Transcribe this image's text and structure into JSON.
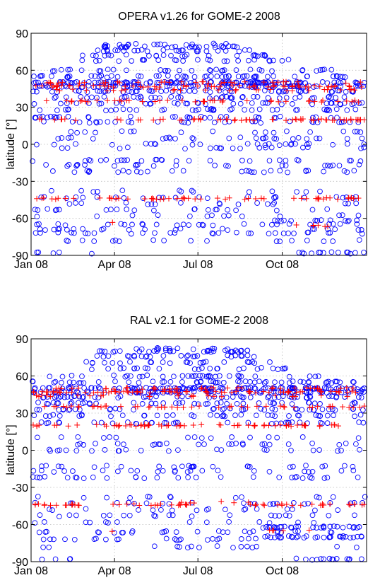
{
  "chart_data": [
    {
      "type": "scatter",
      "title": "OPERA v1.26 for GOME-2 2008",
      "xlabel": "",
      "ylabel": "latitude [°]",
      "xlim": [
        "2008-01-01",
        "2009-01-01"
      ],
      "ylim": [
        -90,
        90
      ],
      "xticks": [
        {
          "date": "2008-01-01",
          "label": "Jan 08"
        },
        {
          "date": "2008-04-01",
          "label": "Apr 08"
        },
        {
          "date": "2008-07-01",
          "label": "Jul 08"
        },
        {
          "date": "2008-10-01",
          "label": "Oct 08"
        }
      ],
      "yticks": [
        -90,
        -60,
        -30,
        0,
        30,
        60,
        90
      ],
      "grid": true,
      "series": [
        {
          "marker": "circle",
          "color": "#0000ff",
          "bands": [
            {
              "lat": 50,
              "from": "2008-01-01",
              "to": "2008-12-31",
              "count": 110
            },
            {
              "lat": 47,
              "from": "2008-01-01",
              "to": "2008-12-31",
              "count": 80
            },
            {
              "lat": 43,
              "from": "2008-01-01",
              "to": "2008-12-31",
              "count": 55
            },
            {
              "lat": 38,
              "from": "2008-01-01",
              "to": "2008-12-31",
              "count": 45
            },
            {
              "lat": 33,
              "from": "2008-01-01",
              "to": "2008-12-31",
              "count": 40
            },
            {
              "lat": 28,
              "from": "2008-01-01",
              "to": "2008-12-31",
              "count": 40
            },
            {
              "lat": 22,
              "from": "2008-01-01",
              "to": "2008-12-31",
              "count": 35
            },
            {
              "lat": 18,
              "from": "2008-01-01",
              "to": "2008-12-31",
              "count": 30
            },
            {
              "lat": 60,
              "from": "2008-01-20",
              "to": "2008-11-25",
              "count": 35
            },
            {
              "lat": 55,
              "from": "2008-01-01",
              "to": "2008-12-31",
              "count": 55
            },
            {
              "lat": 68,
              "from": "2008-02-25",
              "to": "2008-10-15",
              "count": 25
            },
            {
              "lat": 72,
              "from": "2008-02-20",
              "to": "2008-09-20",
              "count": 25
            },
            {
              "lat": 76,
              "from": "2008-03-10",
              "to": "2008-09-05",
              "count": 25
            },
            {
              "lat": 79,
              "from": "2008-03-15",
              "to": "2008-08-25",
              "count": 30
            },
            {
              "lat": 81,
              "from": "2008-03-20",
              "to": "2008-08-10",
              "count": 14
            },
            {
              "lat": 10,
              "from": "2008-01-01",
              "to": "2008-12-31",
              "count": 18
            },
            {
              "lat": 5,
              "from": "2008-01-01",
              "to": "2008-12-31",
              "count": 28
            },
            {
              "lat": 0,
              "from": "2008-01-01",
              "to": "2008-12-31",
              "count": 24
            },
            {
              "lat": -3,
              "from": "2008-01-01",
              "to": "2008-12-31",
              "count": 18
            },
            {
              "lat": -13,
              "from": "2008-01-01",
              "to": "2008-12-31",
              "count": 28
            },
            {
              "lat": -17,
              "from": "2008-01-01",
              "to": "2008-12-31",
              "count": 24
            },
            {
              "lat": -22,
              "from": "2008-01-01",
              "to": "2008-12-31",
              "count": 30
            },
            {
              "lat": -38,
              "from": "2008-01-01",
              "to": "2008-12-31",
              "count": 14
            },
            {
              "lat": -43,
              "from": "2008-01-01",
              "to": "2008-12-31",
              "count": 24
            },
            {
              "lat": -48,
              "from": "2008-01-01",
              "to": "2008-12-31",
              "count": 18
            },
            {
              "lat": -53,
              "from": "2008-01-01",
              "to": "2008-12-31",
              "count": 22
            },
            {
              "lat": -58,
              "from": "2008-01-01",
              "to": "2008-12-31",
              "count": 14
            },
            {
              "lat": -62,
              "from": "2008-09-10",
              "to": "2008-12-31",
              "count": 14
            },
            {
              "lat": -65,
              "from": "2008-01-01",
              "to": "2008-12-31",
              "count": 28
            },
            {
              "lat": -69,
              "from": "2008-01-01",
              "to": "2008-12-31",
              "count": 22
            },
            {
              "lat": -72,
              "from": "2008-01-01",
              "to": "2008-12-31",
              "count": 30
            },
            {
              "lat": -78,
              "from": "2008-01-01",
              "to": "2008-12-31",
              "count": 18
            },
            {
              "lat": -88,
              "from": "2008-01-01",
              "to": "2008-03-10",
              "count": 5
            },
            {
              "lat": -88,
              "from": "2008-10-10",
              "to": "2008-12-31",
              "count": 14
            }
          ]
        },
        {
          "marker": "plus",
          "color": "#ff0000",
          "bands": [
            {
              "lat": 50,
              "from": "2008-01-01",
              "to": "2008-12-31",
              "count": 35
            },
            {
              "lat": 47,
              "from": "2008-01-01",
              "to": "2008-12-31",
              "count": 60
            },
            {
              "lat": 44,
              "from": "2008-01-01",
              "to": "2008-12-31",
              "count": 30
            },
            {
              "lat": 35,
              "from": "2008-01-15",
              "to": "2008-12-31",
              "count": 45
            },
            {
              "lat": 20,
              "from": "2008-01-01",
              "to": "2008-12-31",
              "count": 60
            },
            {
              "lat": -44,
              "from": "2008-01-01",
              "to": "2008-12-31",
              "count": 55
            },
            {
              "lat": -63,
              "from": "2008-03-20",
              "to": "2008-04-01",
              "count": 1
            },
            {
              "lat": -66,
              "from": "2008-10-01",
              "to": "2008-11-20",
              "count": 6
            }
          ]
        }
      ]
    },
    {
      "type": "scatter",
      "title": "RAL v2.1 for GOME-2 2008",
      "xlabel": "",
      "ylabel": "latitude [°]",
      "xlim": [
        "2008-01-01",
        "2009-01-01"
      ],
      "ylim": [
        -90,
        90
      ],
      "xticks": [
        {
          "date": "2008-01-01",
          "label": "Jan 08"
        },
        {
          "date": "2008-04-01",
          "label": "Apr 08"
        },
        {
          "date": "2008-07-01",
          "label": "Jul 08"
        },
        {
          "date": "2008-10-01",
          "label": "Oct 08"
        }
      ],
      "yticks": [
        -90,
        -60,
        -30,
        0,
        30,
        60,
        90
      ],
      "grid": true,
      "series": [
        {
          "marker": "circle",
          "color": "#0000ff",
          "bands": [
            {
              "lat": 50,
              "from": "2008-01-01",
              "to": "2008-12-31",
              "count": 110
            },
            {
              "lat": 47,
              "from": "2008-01-01",
              "to": "2008-12-31",
              "count": 80
            },
            {
              "lat": 43,
              "from": "2008-01-01",
              "to": "2008-12-31",
              "count": 55
            },
            {
              "lat": 38,
              "from": "2008-01-01",
              "to": "2008-12-31",
              "count": 45
            },
            {
              "lat": 33,
              "from": "2008-01-01",
              "to": "2008-12-31",
              "count": 40
            },
            {
              "lat": 28,
              "from": "2008-01-01",
              "to": "2008-12-31",
              "count": 40
            },
            {
              "lat": 22,
              "from": "2008-01-01",
              "to": "2008-12-31",
              "count": 35
            },
            {
              "lat": 60,
              "from": "2008-01-20",
              "to": "2008-11-25",
              "count": 35
            },
            {
              "lat": 55,
              "from": "2008-01-01",
              "to": "2008-12-31",
              "count": 55
            },
            {
              "lat": 66,
              "from": "2008-02-25",
              "to": "2008-10-15",
              "count": 25
            },
            {
              "lat": 71,
              "from": "2008-03-01",
              "to": "2008-09-20",
              "count": 25
            },
            {
              "lat": 76,
              "from": "2008-03-10",
              "to": "2008-09-05",
              "count": 25
            },
            {
              "lat": 80,
              "from": "2008-03-15",
              "to": "2008-08-25",
              "count": 30
            },
            {
              "lat": 82,
              "from": "2008-04-15",
              "to": "2008-08-10",
              "count": 12
            },
            {
              "lat": 10,
              "from": "2008-01-01",
              "to": "2008-12-31",
              "count": 16
            },
            {
              "lat": 5,
              "from": "2008-01-01",
              "to": "2008-12-31",
              "count": 26
            },
            {
              "lat": 0,
              "from": "2008-01-01",
              "to": "2008-12-31",
              "count": 24
            },
            {
              "lat": -13,
              "from": "2008-01-01",
              "to": "2008-12-31",
              "count": 26
            },
            {
              "lat": -17,
              "from": "2008-01-01",
              "to": "2008-12-31",
              "count": 24
            },
            {
              "lat": -22,
              "from": "2008-01-01",
              "to": "2008-12-31",
              "count": 30
            },
            {
              "lat": -38,
              "from": "2008-01-01",
              "to": "2008-12-31",
              "count": 14
            },
            {
              "lat": -43,
              "from": "2008-01-01",
              "to": "2008-12-31",
              "count": 24
            },
            {
              "lat": -48,
              "from": "2008-01-01",
              "to": "2008-12-31",
              "count": 18
            },
            {
              "lat": -53,
              "from": "2008-01-01",
              "to": "2008-12-31",
              "count": 22
            },
            {
              "lat": -58,
              "from": "2008-01-01",
              "to": "2008-12-31",
              "count": 14
            },
            {
              "lat": -62,
              "from": "2008-09-10",
              "to": "2008-12-31",
              "count": 30
            },
            {
              "lat": -66,
              "from": "2008-01-01",
              "to": "2008-12-31",
              "count": 28
            },
            {
              "lat": -70,
              "from": "2008-09-10",
              "to": "2008-12-31",
              "count": 30
            },
            {
              "lat": -72,
              "from": "2008-01-01",
              "to": "2008-09-10",
              "count": 22
            },
            {
              "lat": -78,
              "from": "2008-01-01",
              "to": "2008-12-31",
              "count": 16
            },
            {
              "lat": -88,
              "from": "2008-01-01",
              "to": "2008-02-20",
              "count": 4
            },
            {
              "lat": -88,
              "from": "2008-10-10",
              "to": "2008-12-31",
              "count": 14
            }
          ]
        },
        {
          "marker": "plus",
          "color": "#ff0000",
          "bands": [
            {
              "lat": 50,
              "from": "2008-01-01",
              "to": "2008-12-31",
              "count": 40
            },
            {
              "lat": 47,
              "from": "2008-01-01",
              "to": "2008-12-31",
              "count": 70
            },
            {
              "lat": 44,
              "from": "2008-01-01",
              "to": "2008-12-31",
              "count": 25
            },
            {
              "lat": 35,
              "from": "2008-01-15",
              "to": "2008-12-31",
              "count": 50
            },
            {
              "lat": 20,
              "from": "2008-01-01",
              "to": "2008-12-31",
              "count": 65
            },
            {
              "lat": -44,
              "from": "2008-01-01",
              "to": "2008-12-31",
              "count": 55
            },
            {
              "lat": -42,
              "from": "2008-06-01",
              "to": "2008-09-01",
              "count": 6
            },
            {
              "lat": -66,
              "from": "2008-03-20",
              "to": "2008-04-01",
              "count": 1
            },
            {
              "lat": -65,
              "from": "2008-09-15",
              "to": "2008-11-01",
              "count": 5
            }
          ]
        }
      ]
    }
  ]
}
